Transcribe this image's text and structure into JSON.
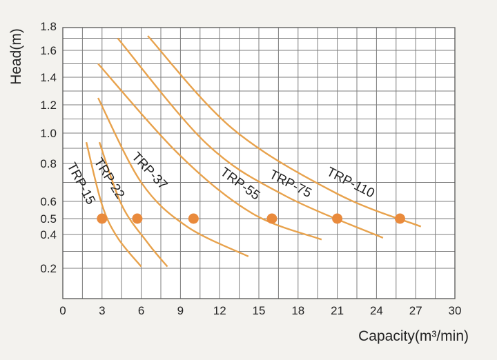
{
  "chart_data": {
    "type": "line",
    "xlabel": "Capacity(m³/min)",
    "ylabel": "Head(m)",
    "xlim": [
      0,
      30
    ],
    "ylim": [
      0,
      1.8
    ],
    "y_scale": "log",
    "grid": true,
    "x_ticks": [
      "0",
      "3",
      "6",
      "9",
      "12",
      "15",
      "18",
      "21",
      "24",
      "27",
      "30"
    ],
    "y_ticks": [
      {
        "value": 0.2,
        "label": "0.2"
      },
      {
        "value": 0.4,
        "label": "0.4"
      },
      {
        "value": 0.5,
        "label": "0.5"
      },
      {
        "value": 0.6,
        "label": "0.6"
      },
      {
        "value": 0.8,
        "label": "0.8"
      },
      {
        "value": 1.0,
        "label": "1.0"
      },
      {
        "value": 1.2,
        "label": "1.2"
      },
      {
        "value": 1.4,
        "label": "1.4"
      },
      {
        "value": 1.6,
        "label": "1.6"
      },
      {
        "value": 1.8,
        "label": "1.8"
      }
    ],
    "line_color": "#e8a24c",
    "marker_color": "#e98a3c",
    "series": [
      {
        "name": "TRP-15",
        "x": [
          1.8,
          3.0,
          4.2,
          6.0
        ],
        "y": [
          0.94,
          0.58,
          0.38,
          0.21
        ],
        "operating_point": {
          "x": 3.0,
          "y": 0.5
        }
      },
      {
        "name": "TRP-22",
        "x": [
          2.8,
          4.5,
          6.5,
          8.0
        ],
        "y": [
          0.94,
          0.58,
          0.35,
          0.21
        ],
        "operating_point": {
          "x": 5.7,
          "y": 0.5
        }
      },
      {
        "name": "TRP-37",
        "x": [
          2.7,
          6.0,
          9.5,
          14.2
        ],
        "y": [
          1.25,
          0.7,
          0.45,
          0.27
        ],
        "operating_point": {
          "x": 10.0,
          "y": 0.5
        }
      },
      {
        "name": "TRP-55",
        "x": [
          2.7,
          9.0,
          14.5,
          19.8
        ],
        "y": [
          1.5,
          0.85,
          0.53,
          0.37
        ],
        "operating_point": {
          "x": 16.0,
          "y": 0.5
        }
      },
      {
        "name": "TRP-75",
        "x": [
          4.2,
          11.0,
          17.0,
          24.5
        ],
        "y": [
          1.7,
          0.93,
          0.63,
          0.38
        ],
        "operating_point": {
          "x": 21.0,
          "y": 0.5
        }
      },
      {
        "name": "TRP-110",
        "x": [
          6.5,
          13.0,
          21.0,
          27.4
        ],
        "y": [
          1.72,
          1.03,
          0.64,
          0.45
        ],
        "operating_point": {
          "x": 25.8,
          "y": 0.5
        }
      }
    ]
  }
}
